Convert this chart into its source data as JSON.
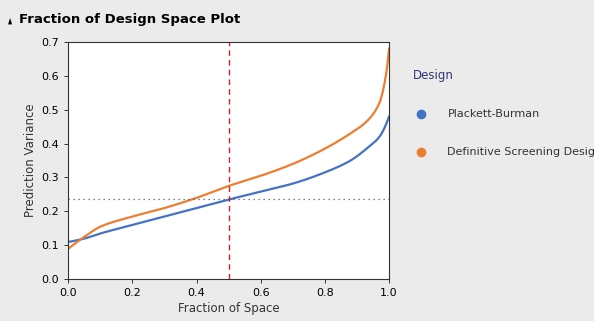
{
  "title": "Fraction of Design Space Plot",
  "xlabel": "Fraction of Space",
  "ylabel": "Prediction Variance",
  "xlim": [
    0.0,
    1.0
  ],
  "ylim": [
    0.0,
    0.7
  ],
  "yticks": [
    0.0,
    0.1,
    0.2,
    0.3,
    0.4,
    0.5,
    0.6,
    0.7
  ],
  "xticks": [
    0.0,
    0.2,
    0.4,
    0.6,
    0.8,
    1.0
  ],
  "vline_x": 0.5,
  "hline_y": 0.238,
  "vline_color": "#cc2222",
  "hline_color": "#555555",
  "pb_color": "#4472C4",
  "dsd_color": "#ED7D31",
  "legend_title": "Design",
  "legend_labels": [
    "Plackett-Burman",
    "Definitive Screening Design"
  ],
  "bg_color": "#ebebeb",
  "plot_bg_color": "#ffffff",
  "title_bg_color": "#d0d0d0"
}
